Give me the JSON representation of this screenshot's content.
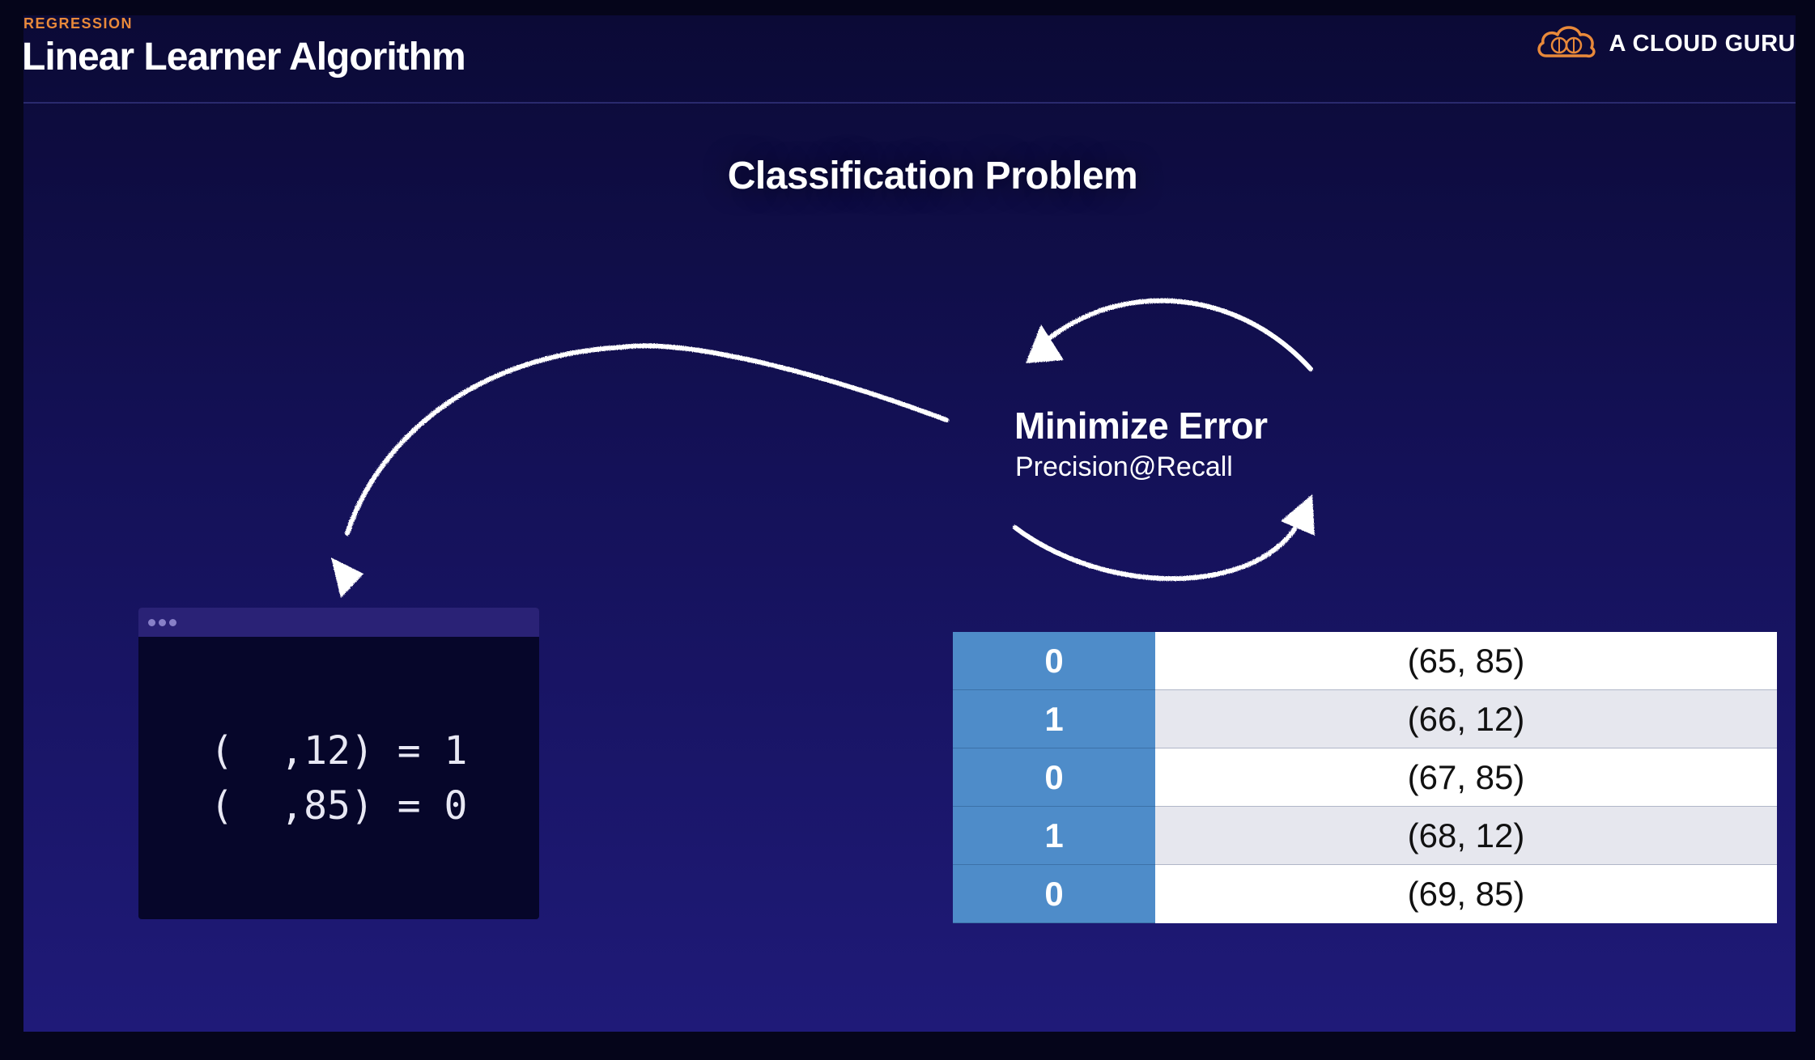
{
  "header": {
    "section_label": "REGRESSION",
    "title": "Linear Learner Algorithm",
    "brand_name": "A CLOUD GURU",
    "brand_icon": "cloud-logo-icon"
  },
  "diagram": {
    "title": "Classification Problem",
    "loop_title": "Minimize Error",
    "loop_subtitle": "Precision@Recall"
  },
  "code_window": {
    "lines": [
      "(  ,12) = 1",
      "(  ,85) = 0"
    ]
  },
  "table": {
    "rows": [
      {
        "label": "0",
        "pair": "(65, 85)"
      },
      {
        "label": "1",
        "pair": "(66, 12)"
      },
      {
        "label": "0",
        "pair": "(67, 85)"
      },
      {
        "label": "1",
        "pair": "(68, 12)"
      },
      {
        "label": "0",
        "pair": "(69, 85)"
      }
    ]
  },
  "colors": {
    "accent_orange": "#e8893a",
    "label_column_blue": "#4e8cc9",
    "background_navy": "#141158"
  }
}
